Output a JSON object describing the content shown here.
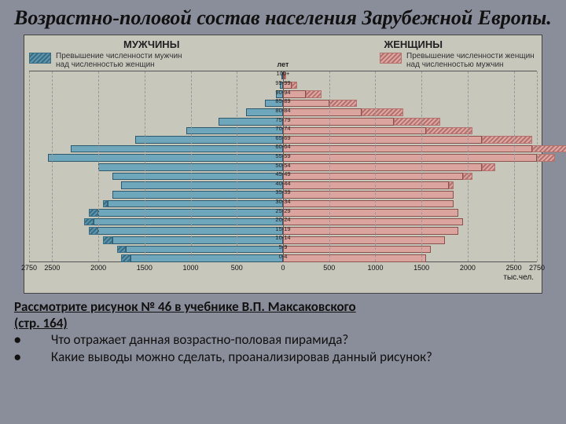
{
  "title": "Возрастно-половой состав населения Зарубежной Европы.",
  "figure": {
    "label_men": "МУЖЧИНЫ",
    "label_women": "ЖЕНЩИНЫ",
    "y_unit": "лет",
    "legend_men": "Превышение численности мужчин над численностью женщин",
    "legend_women": "Превышение численности женщин над численностью мужчин",
    "x_unit": "тыс.чел.",
    "background_color": "#c7c7bc",
    "male_color": "#6ea6bc",
    "female_color": "#dba49e",
    "male_border": "#2f5a6e",
    "female_border": "#8a524c",
    "xlim": 2750,
    "xticks": [
      2750,
      2500,
      2000,
      1500,
      1000,
      500,
      0,
      500,
      1000,
      1500,
      2000,
      2500,
      2750
    ],
    "age_bins": [
      "100+",
      "95-99",
      "90-94",
      "85-89",
      "80-84",
      "75-79",
      "70-74",
      "65-69",
      "60-64",
      "55-59",
      "50-54",
      "45-49",
      "40-44",
      "35-39",
      "30-34",
      "25-29",
      "20-24",
      "15-19",
      "10-14",
      "5-9",
      "0-4"
    ],
    "male": [
      5,
      30,
      80,
      200,
      400,
      700,
      1050,
      1600,
      2300,
      2550,
      2000,
      1850,
      1750,
      1850,
      1900,
      2000,
      2050,
      2000,
      1850,
      1700,
      1650
    ],
    "female": [
      20,
      90,
      250,
      500,
      850,
      1200,
      1550,
      2150,
      2700,
      2750,
      2150,
      1950,
      1800,
      1850,
      1850,
      1900,
      1950,
      1900,
      1750,
      1600,
      1550
    ],
    "male_excess": [
      0,
      0,
      0,
      0,
      0,
      0,
      0,
      0,
      0,
      0,
      0,
      0,
      0,
      0,
      50,
      100,
      100,
      100,
      100,
      100,
      100
    ],
    "female_excess": [
      15,
      60,
      170,
      300,
      450,
      500,
      500,
      550,
      400,
      200,
      150,
      100,
      50,
      0,
      0,
      0,
      0,
      0,
      0,
      0,
      0
    ]
  },
  "bottom": {
    "line1": "Рассмотрите  рисунок  № 46  в учебнике В.П. Максаковского",
    "line2": "(стр. 164)",
    "q1": "Что отражает  данная возрастно-половая пирамида?",
    "q2": "Какие выводы можно сделать, проанализировав данный рисунок?"
  }
}
